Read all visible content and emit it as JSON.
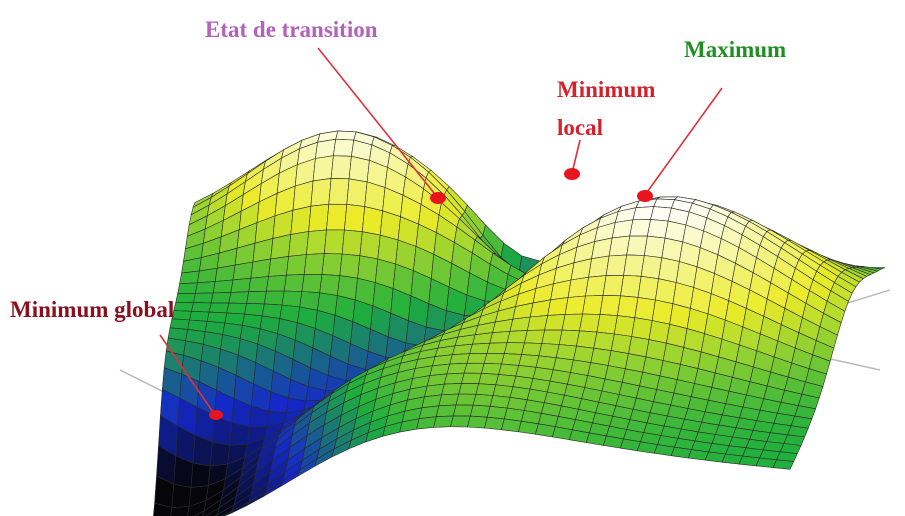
{
  "labels": {
    "transition": "Etat de transition",
    "local_min": [
      "Minimum",
      "local"
    ],
    "maximum": "Maximum",
    "global_min": "Minimum global"
  }
}
